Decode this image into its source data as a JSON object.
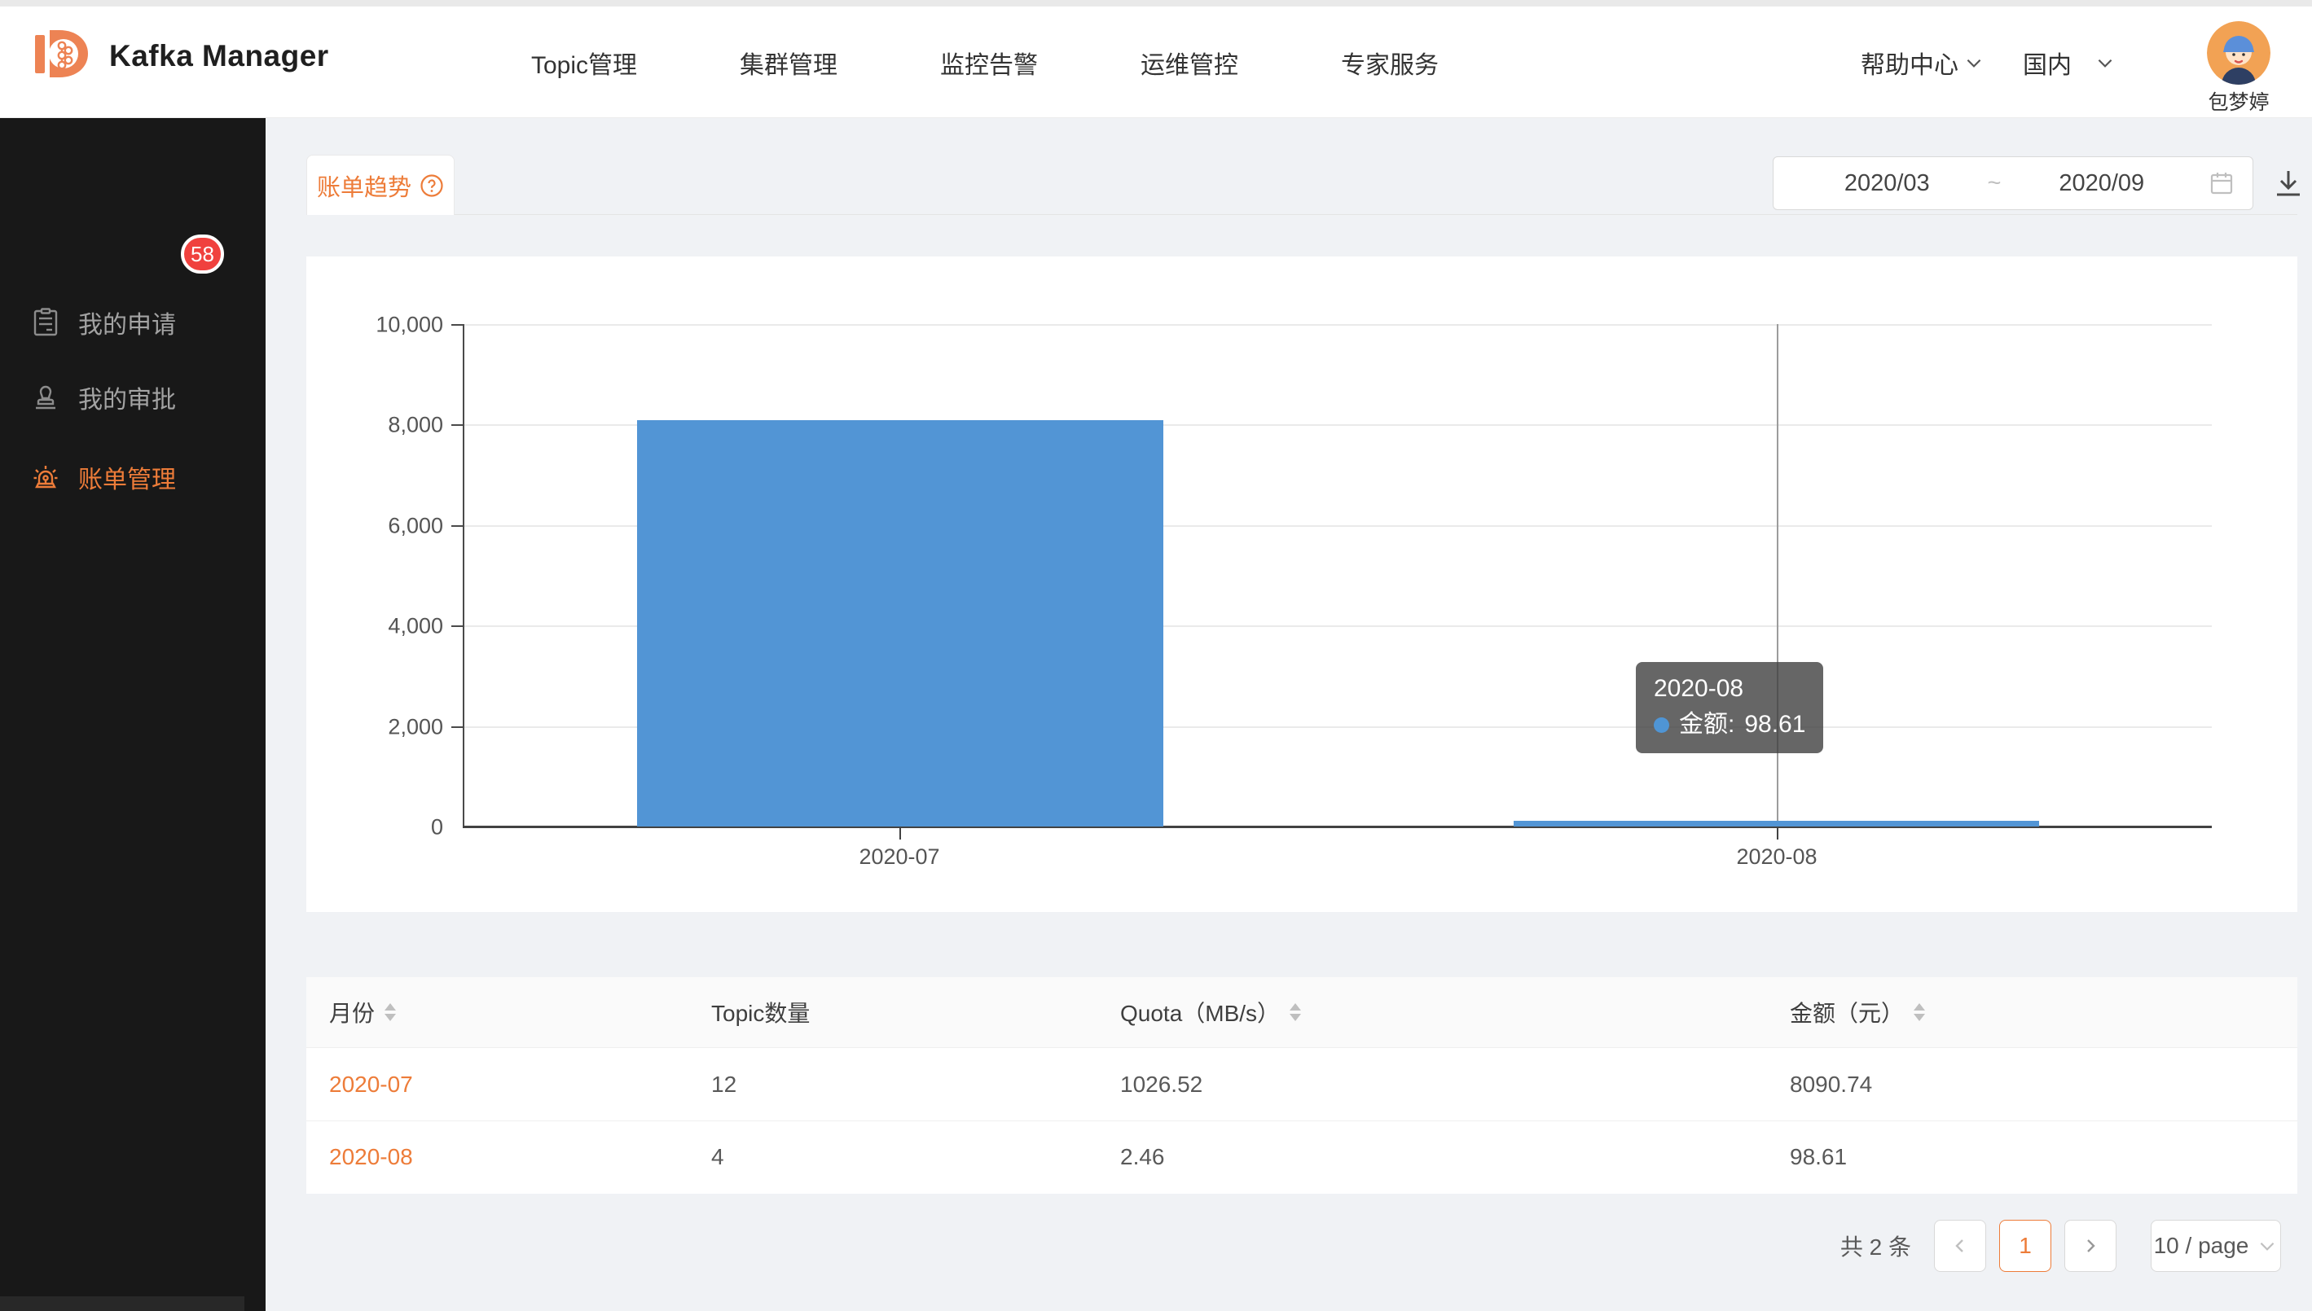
{
  "brand": {
    "title": "Kafka Manager"
  },
  "topnav": {
    "items": [
      {
        "label": "Topic管理"
      },
      {
        "label": "集群管理"
      },
      {
        "label": "监控告警"
      },
      {
        "label": "运维管控"
      },
      {
        "label": "专家服务"
      }
    ],
    "help_label": "帮助中心",
    "region_label": "国内",
    "user_name": "包梦婷"
  },
  "sidebar": {
    "items": [
      {
        "label": "我的申请",
        "icon": "clipboard-icon",
        "active": false
      },
      {
        "label": "我的审批",
        "icon": "stamp-icon",
        "active": false,
        "badge": "58"
      },
      {
        "label": "账单管理",
        "icon": "alarm-icon",
        "active": true
      }
    ]
  },
  "content": {
    "tab_label": "账单趋势",
    "date_range": {
      "start": "2020/03",
      "separator": "~",
      "end": "2020/09"
    },
    "chart_data": {
      "type": "bar",
      "title": "",
      "categories": [
        "2020-07",
        "2020-08"
      ],
      "series": [
        {
          "name": "金额",
          "values": [
            8090.74,
            98.61
          ]
        }
      ],
      "bar_color": "#5295d5",
      "xlabel": "",
      "ylabel": "",
      "ylim": [
        0,
        10000
      ],
      "yticks": [
        "0",
        "2,000",
        "4,000",
        "6,000",
        "8,000",
        "10,000"
      ],
      "grid": true,
      "legend": false,
      "hovered_category": "2020-08"
    },
    "tooltip": {
      "title": "2020-08",
      "label": "金额:",
      "value": "98.61"
    },
    "table": {
      "columns": [
        {
          "label": "月份",
          "sortable": true
        },
        {
          "label": "Topic数量",
          "sortable": false
        },
        {
          "label": "Quota（MB/s）",
          "sortable": true
        },
        {
          "label": "金额（元）",
          "sortable": true
        }
      ],
      "rows": [
        {
          "month": "2020-07",
          "topics": "12",
          "quota": "1026.52",
          "amount": "8090.74"
        },
        {
          "month": "2020-08",
          "topics": "4",
          "quota": "2.46",
          "amount": "98.61"
        }
      ]
    },
    "pagination": {
      "total": "共 2 条",
      "page": "1",
      "page_size": "10 / page"
    }
  },
  "icons": {
    "logo": "kafka-d-logo",
    "help_caret": "chevron-down",
    "calendar": "calendar",
    "download": "download-arrow",
    "question": "question-circle",
    "sorter": "caret-up-down",
    "prev": "chevron-left",
    "next": "chevron-right"
  },
  "colors": {
    "accent_orange": "#ed7c39",
    "bar_blue": "#5295d5",
    "badge_red": "#f0413e",
    "sidebar_bg": "#181818",
    "page_bg": "#f0f2f5",
    "table_header_bg": "#fafafa"
  }
}
